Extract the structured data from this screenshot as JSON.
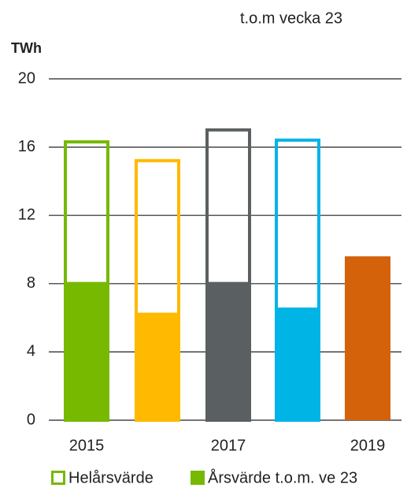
{
  "chart_data": {
    "type": "bar",
    "annotation": "t.o.m vecka 23",
    "y_axis_label": "TWh",
    "categories": [
      "2015",
      null,
      "2017",
      null,
      "2019"
    ],
    "colors": [
      "#76b900",
      "#ffb900",
      "#5a5f61",
      "#00b4e6",
      "#d4620a"
    ],
    "series": [
      {
        "name": "Helårsvärde",
        "style": "outline",
        "values": [
          16.4,
          15.3,
          17.1,
          16.5,
          null
        ]
      },
      {
        "name": "Årsvärde t.o.m. ve 23",
        "style": "filled",
        "values": [
          8.1,
          6.3,
          8.1,
          6.6,
          9.6
        ]
      }
    ],
    "ylim": [
      0,
      20
    ],
    "yticks": [
      0,
      4,
      8,
      12,
      16,
      20
    ],
    "grid": true
  }
}
